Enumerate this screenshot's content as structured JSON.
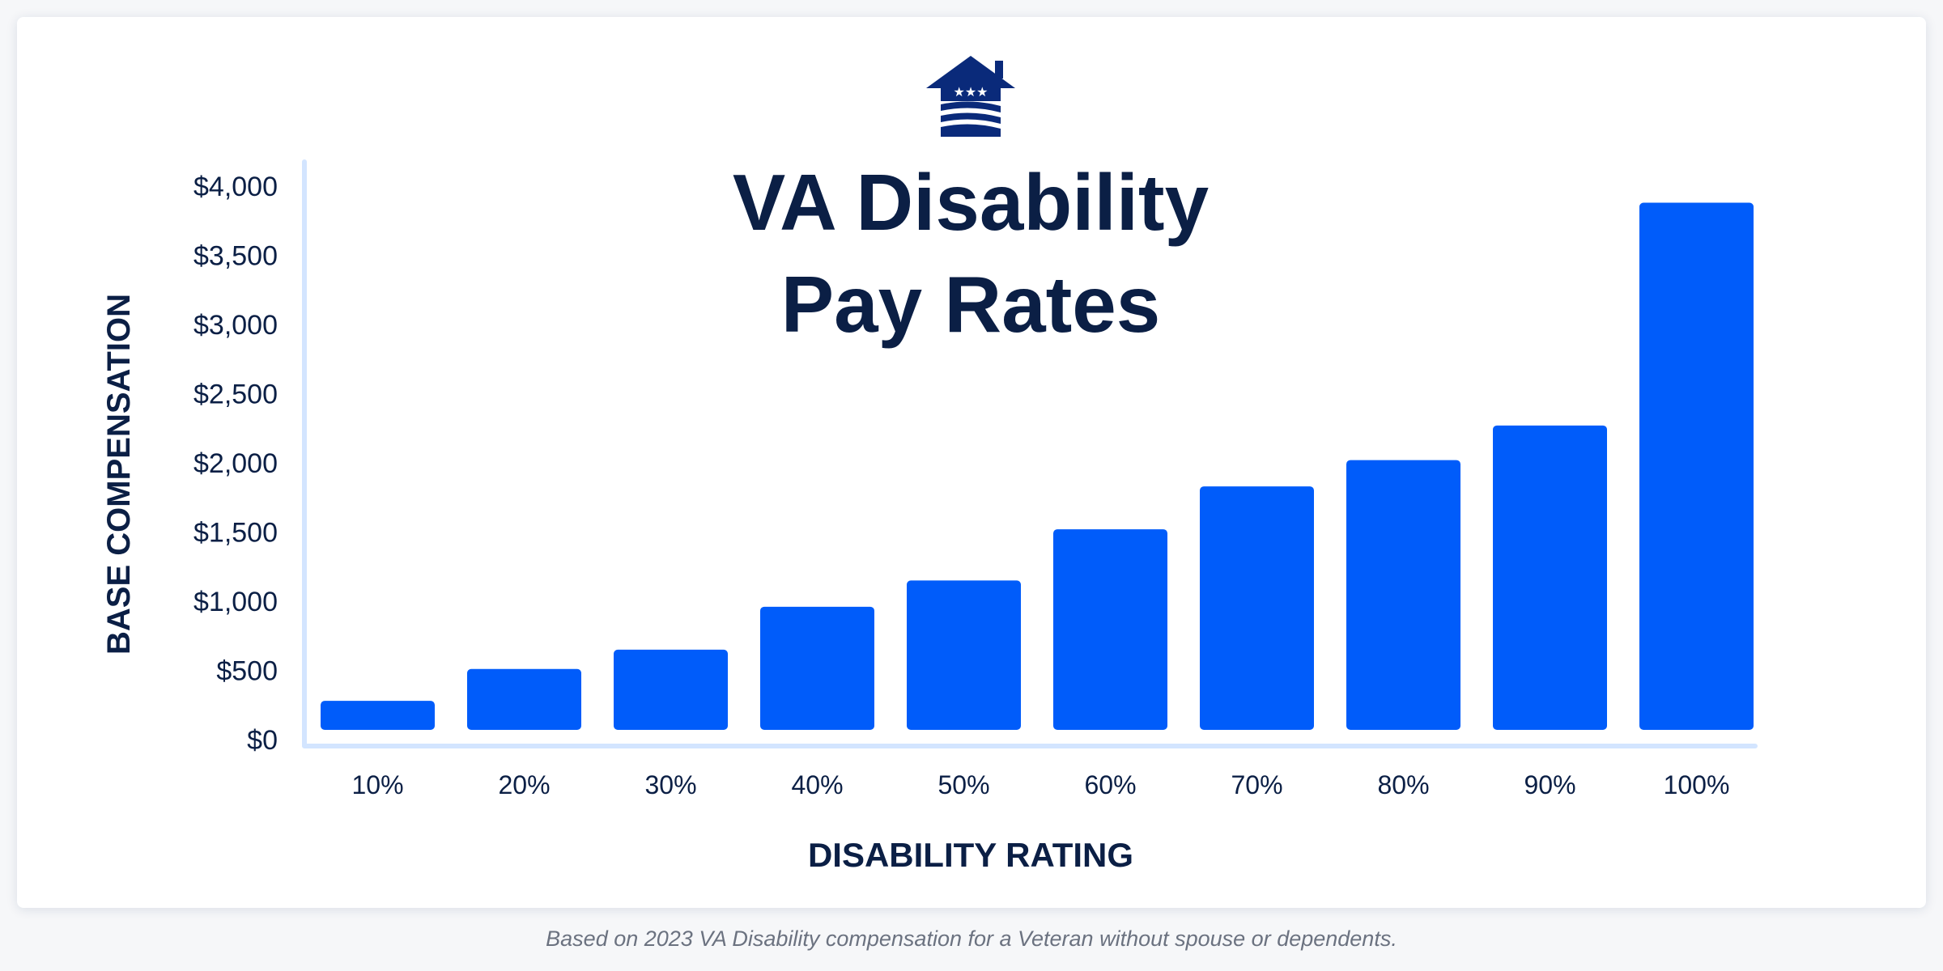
{
  "chart_data": {
    "type": "bar",
    "title": "VA Disability Pay Rates",
    "title_lines": [
      "VA Disability",
      "Pay Rates"
    ],
    "xlabel": "DISABILITY RATING",
    "ylabel": "BASE COMPENSATION",
    "categories": [
      "10%",
      "20%",
      "30%",
      "40%",
      "50%",
      "60%",
      "70%",
      "80%",
      "90%",
      "100%"
    ],
    "values": [
      280,
      510,
      650,
      960,
      1150,
      1520,
      1830,
      2020,
      2270,
      3880
    ],
    "ylim": [
      0,
      4000
    ],
    "yticks": [
      0,
      500,
      1000,
      1500,
      2000,
      2500,
      3000,
      3500,
      4000
    ],
    "ytick_labels": [
      "$0",
      "$500",
      "$1,000",
      "$1,500",
      "$2,000",
      "$2,500",
      "$3,000",
      "$3,500",
      "$4,000"
    ],
    "grid": false,
    "legend": "none",
    "colors": {
      "bar": "#005cfa",
      "axis": "#d3e5ff",
      "text": "#0b1f45",
      "logo": "#0a2a7a"
    }
  },
  "logo": {
    "icon": "house-stars-waves-logo"
  },
  "caption": "Based on 2023 VA Disability compensation for a Veteran without spouse or dependents."
}
